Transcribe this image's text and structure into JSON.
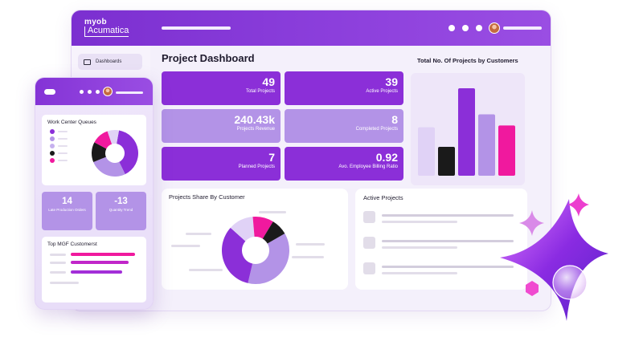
{
  "app": {
    "logo_line1": "myob",
    "logo_line2": "Acumatica"
  },
  "sidebar": {
    "items": [
      {
        "label": "Dashboards",
        "icon": "dashboard-icon"
      }
    ]
  },
  "dashboard": {
    "title": "Project Dashboard",
    "kpis": [
      {
        "value": "49",
        "label": "Total Projects"
      },
      {
        "value": "39",
        "label": "Active Projects"
      },
      {
        "value": "240.43k",
        "label": "Projects Revenue"
      },
      {
        "value": "8",
        "label": "Completed Projects"
      },
      {
        "value": "7",
        "label": "Planned Projects"
      },
      {
        "value": "0.92",
        "label": "Avo. Employee Billing Ratio"
      }
    ],
    "bar_chart_title": "Total No. Of Projects by Customers",
    "share_title": "Projects Share By Customer",
    "active_title": "Active Projects"
  },
  "mobile": {
    "queues_title": "Work Center Queues",
    "kpis": [
      {
        "value": "14",
        "label": "Late Production Orders"
      },
      {
        "value": "-13",
        "label": "Quantity Trend"
      }
    ],
    "top_title": "Top MGF Customerst"
  },
  "colors": {
    "brand_purple": "#8b2fd8",
    "light_purple": "#b393e7",
    "pale_purple": "#e0d2f6",
    "magenta": "#f0199e",
    "black": "#1a1a1a"
  },
  "chart_data": [
    {
      "type": "bar",
      "title": "Total No. Of Projects by Customers",
      "categories": [
        "",
        "",
        "",
        "",
        ""
      ],
      "values": [
        52,
        31,
        94,
        66,
        54
      ],
      "ylim": [
        0,
        100
      ],
      "colors": [
        "#e0d2f6",
        "#1a1a1a",
        "#8b2fd8",
        "#b393e7",
        "#f0199e"
      ],
      "grid": false
    },
    {
      "type": "pie",
      "title": "Projects Share By Customer",
      "values": [
        37,
        33,
        12,
        10,
        8
      ],
      "colors": [
        "#b393e7",
        "#8b2fd8",
        "#e0d2f6",
        "#f0199e",
        "#1a1a1a"
      ]
    },
    {
      "type": "pie",
      "title": "Work Center Queues",
      "values": [
        40,
        26,
        14,
        12,
        8
      ],
      "colors": [
        "#8b2fd8",
        "#b393e7",
        "#1a1a1a",
        "#f0199e",
        "#e0d2f6"
      ]
    }
  ]
}
